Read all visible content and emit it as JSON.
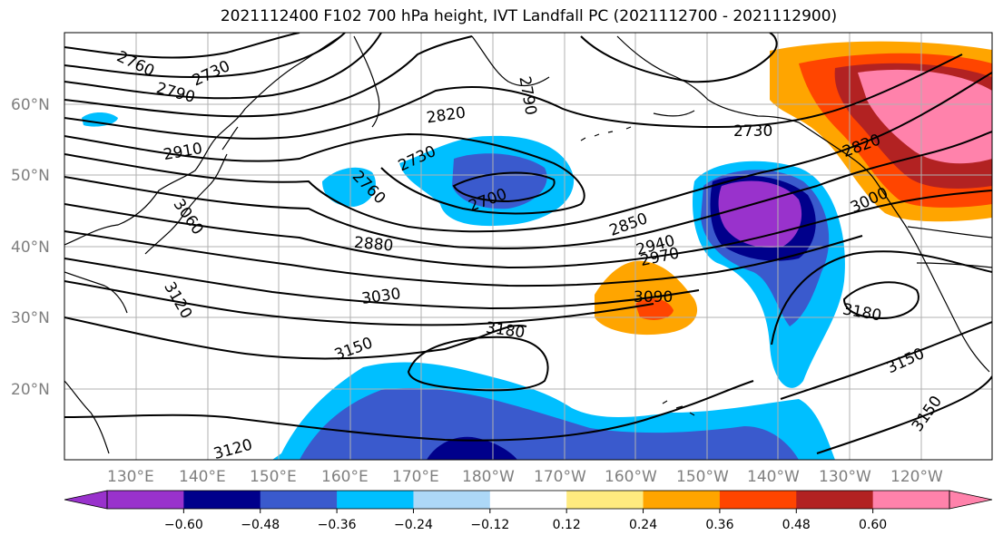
{
  "title": "2021112400 F102 700 hPa height, IVT Landfall PC (2021112700 - 2021112900)",
  "map": {
    "lat_labels": [
      "60°N",
      "50°N",
      "40°N",
      "30°N",
      "20°N"
    ],
    "lon_labels": [
      "130°E",
      "140°E",
      "150°E",
      "160°E",
      "170°E",
      "180°W",
      "170°W",
      "160°W",
      "150°W",
      "140°W",
      "130°W",
      "120°W"
    ],
    "contour_labels": [
      "2760",
      "2730",
      "2790",
      "2910",
      "2790",
      "2820",
      "2760",
      "2730",
      "2700",
      "2730",
      "2820",
      "3060",
      "2880",
      "2850",
      "2940",
      "2970",
      "3000",
      "3030",
      "3090",
      "3180",
      "3180",
      "3150",
      "3150",
      "3150",
      "3120",
      "3120"
    ]
  },
  "colorbar": {
    "colors": [
      "#9932cc",
      "#00008b",
      "#3a5acd",
      "#00bfff",
      "#add8f7",
      "#ffffff",
      "#ffeb7f",
      "#ffa500",
      "#ff4500",
      "#b22222",
      "#ff82ab"
    ],
    "tick_labels": [
      "−0.60",
      "−0.48",
      "−0.36",
      "−0.24",
      "−0.12",
      "0.12",
      "0.24",
      "0.36",
      "0.48",
      "0.60"
    ]
  }
}
